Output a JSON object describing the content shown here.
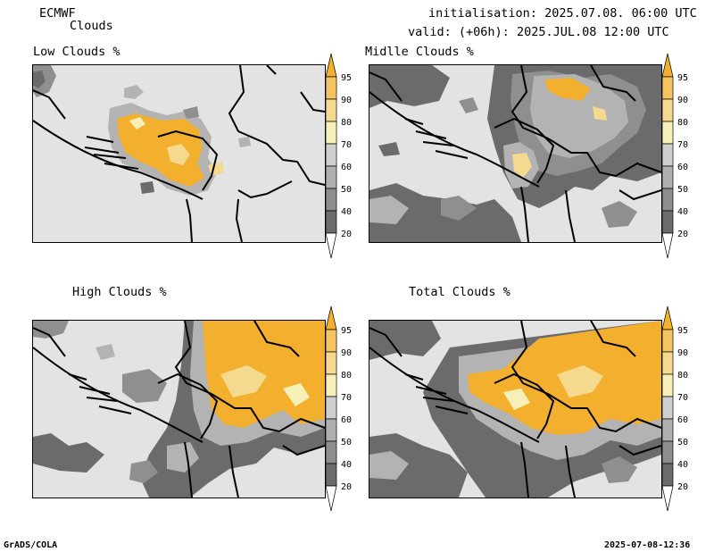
{
  "header": {
    "model": "ECMWF",
    "product": "Clouds",
    "init_label": "initialisation:",
    "init_value": "2025.07.08. 06:00 UTC",
    "valid_label": "valid: (+06h):",
    "valid_value": "2025.JUL.08 12:00 UTC"
  },
  "panels": [
    {
      "id": "low",
      "title": "Low Clouds %"
    },
    {
      "id": "middle",
      "title": "Midlle Clouds %"
    },
    {
      "id": "high",
      "title": "High Clouds %"
    },
    {
      "id": "total",
      "title": "Total Clouds %"
    }
  ],
  "colorbar": {
    "ticks": [
      "95",
      "90",
      "80",
      "70",
      "60",
      "50",
      "40",
      "20"
    ],
    "colors": [
      "#f2b02e",
      "#f3c45f",
      "#f5d98f",
      "#f6f0b8",
      "#cfcfcf",
      "#b0b0b0",
      "#8d8d8d",
      "#6c6c6c",
      "#4f4f4f"
    ]
  },
  "footer": {
    "left": "GrADS/COLA",
    "right": "2025-07-08-12:36"
  },
  "palette": {
    "background": "#e3e3e3",
    "grey_dark": "#6b6b6b",
    "grey_mid": "#8f8f8f",
    "grey_light": "#b3b3b3",
    "orange": "#f2b02e",
    "orange_light": "#f5d98f",
    "cream": "#f6f0b8"
  }
}
